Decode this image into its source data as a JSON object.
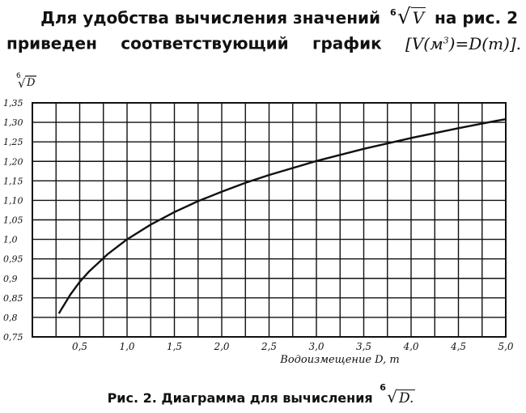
{
  "intro": {
    "line1_text": "Для удобства вычисления значений",
    "line1_root_index": "6",
    "line1_root_var": "V",
    "line1_tail": "на рис. 2",
    "line2_text": "приведен соответствующий график",
    "line2_formula_open": "[V(м",
    "line2_formula_sup": "3",
    "line2_formula_mid": ")=D(т)]."
  },
  "caption": {
    "text": "Рис. 2. Диаграмма для вычисления",
    "root_index": "6",
    "root_var": "D."
  },
  "chart_data": {
    "type": "line",
    "ylabel_index": "6",
    "ylabel_var": "D",
    "xlabel": "Водоизмещение D, т",
    "xlim": [
      0,
      5.0
    ],
    "ylim": [
      0.75,
      1.35
    ],
    "grid": true,
    "x_ticks": [
      0.5,
      1.0,
      1.5,
      2.0,
      2.5,
      3.0,
      3.5,
      4.0,
      4.5,
      5.0
    ],
    "x_tick_labels": [
      "0,5",
      "1,0",
      "1,5",
      "2,0",
      "2,5",
      "3,0",
      "3,5",
      "4,0",
      "4,5",
      "5,0"
    ],
    "y_ticks": [
      0.75,
      0.8,
      0.85,
      0.9,
      0.95,
      1.0,
      1.05,
      1.1,
      1.15,
      1.2,
      1.25,
      1.3,
      1.35
    ],
    "y_tick_labels": [
      "0,75",
      "0,8",
      "0,85",
      "0,9",
      "0,95",
      "1,0",
      "1,05",
      "1,10",
      "1,15",
      "1,20",
      "1,25",
      "1,30",
      "1,35"
    ],
    "series": [
      {
        "x": [
          0.28,
          0.3,
          0.4,
          0.5,
          0.6,
          0.8,
          1.0,
          1.25,
          1.5,
          1.75,
          2.0,
          2.25,
          2.5,
          3.0,
          3.5,
          4.0,
          4.5,
          4.9,
          5.0
        ],
        "y": [
          0.81,
          0.818,
          0.858,
          0.891,
          0.918,
          0.963,
          1.0,
          1.038,
          1.07,
          1.098,
          1.122,
          1.145,
          1.165,
          1.201,
          1.232,
          1.26,
          1.285,
          1.304,
          1.308
        ]
      }
    ],
    "colors": {
      "ink": "#111111"
    }
  }
}
